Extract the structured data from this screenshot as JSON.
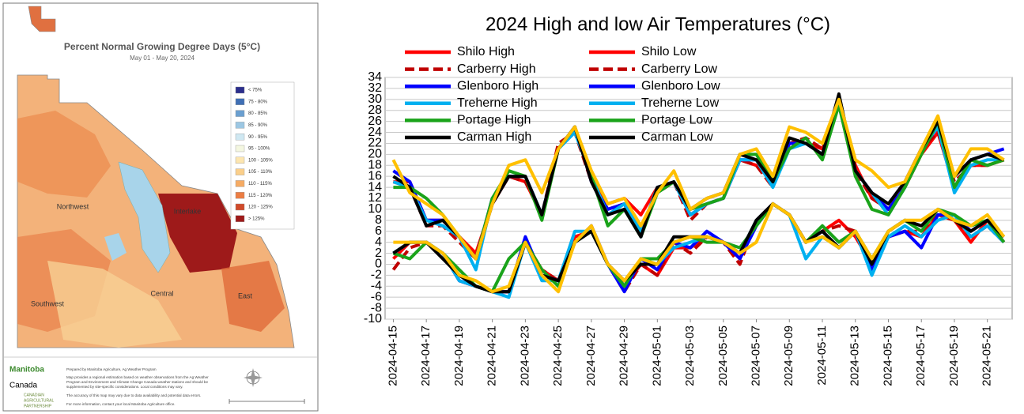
{
  "map_panel": {
    "title": "Percent Normal Growing Degree Days (5°C)",
    "subtitle": "May 01 - May 20, 2024",
    "legend": [
      {
        "label": "< 75%",
        "color": "#2b2e8c"
      },
      {
        "label": "75 - 80%",
        "color": "#3f6fb5"
      },
      {
        "label": "80 - 85%",
        "color": "#6a9fd0"
      },
      {
        "label": "85 - 90%",
        "color": "#9cc7e3"
      },
      {
        "label": "90 - 95%",
        "color": "#cfe8f2"
      },
      {
        "label": "95 - 100%",
        "color": "#f4f7e0"
      },
      {
        "label": "100 - 105%",
        "color": "#fde6b0"
      },
      {
        "label": "105 - 110%",
        "color": "#fbcf8a"
      },
      {
        "label": "110 - 115%",
        "color": "#f6ab63"
      },
      {
        "label": "115 - 120%",
        "color": "#ec7d43"
      },
      {
        "label": "120 - 125%",
        "color": "#d04a2a"
      },
      {
        "label": "> 125%",
        "color": "#9e1a1a"
      }
    ],
    "regions": [
      "Northwest",
      "Interlake",
      "Southwest",
      "Central",
      "East"
    ],
    "logos": [
      "Manitoba",
      "Canada",
      "CANADIAN",
      "AGRICULTURAL",
      "PARTNERSHIP"
    ],
    "notes": [
      "Prepared by Manitoba Agriculture, Ag Weather Program",
      "Map provides a regional estimation based on weather observations from the Ag Weather",
      "Program and Environment and Climate Change Canada weather stations and should be",
      "supplemented by site-specific considerations. Local conditions may vary.",
      "The accuracy of this map may vary due to data availability and potential data errors.",
      "For more information, contact your local Manitoba Agriculture office."
    ]
  },
  "chart_data": {
    "type": "line",
    "title": "2024 High and low Air Temperatures (°C)",
    "categories": [
      "2024-04-15",
      null,
      "2024-04-17",
      null,
      "2024-04-19",
      null,
      "2024-04-21",
      null,
      "2024-04-23",
      null,
      "2024-04-25",
      null,
      "2024-04-27",
      null,
      "2024-04-29",
      null,
      "2024-05-01",
      null,
      "2024-05-03",
      null,
      "2024-05-05",
      null,
      "2024-05-07",
      null,
      "2024-05-09",
      null,
      "2024-05-11",
      null,
      "2024-05-13",
      null,
      "2024-05-15",
      null,
      "2024-05-17",
      null,
      "2024-05-19",
      null,
      "2024-05-21",
      null
    ],
    "ylim": [
      -10,
      34
    ],
    "yticks": [
      -10,
      -8,
      -6,
      -4,
      -2,
      0,
      2,
      4,
      6,
      8,
      10,
      12,
      14,
      16,
      18,
      20,
      22,
      24,
      26,
      28,
      30,
      32,
      34
    ],
    "grid": true,
    "series": [
      {
        "name": "Shilo High",
        "color": "#ff0000",
        "values": [
          15,
          15,
          8,
          8,
          5,
          2,
          11,
          16,
          15,
          9,
          21,
          25,
          16,
          11,
          12,
          9,
          14,
          15,
          9,
          11,
          12,
          19,
          18,
          15,
          22,
          22,
          21,
          29,
          18,
          12,
          10,
          14,
          20,
          24,
          14,
          18,
          18,
          19
        ]
      },
      {
        "name": "Shilo Low",
        "color": "#ff0000",
        "values": [
          1,
          4,
          4,
          2,
          -3,
          -4,
          -5,
          -5,
          4,
          -1,
          -3,
          5,
          6,
          0,
          -4,
          0,
          -2,
          3,
          3,
          5,
          4,
          1,
          8,
          11,
          9,
          4,
          6,
          8,
          5,
          0,
          5,
          6,
          5,
          9,
          8,
          4,
          8,
          4
        ]
      },
      {
        "name": "Carberry High",
        "color": "#c00000",
        "dashed": true,
        "values": [
          15,
          14,
          7,
          7,
          4,
          1,
          11,
          16,
          15,
          9,
          22,
          24,
          15,
          10,
          11,
          6,
          13,
          15,
          8,
          11,
          12,
          19,
          18,
          14,
          22,
          23,
          21,
          29,
          17,
          12,
          10,
          15,
          21,
          24,
          15,
          18,
          18,
          19
        ]
      },
      {
        "name": "Carberry Low",
        "color": "#c00000",
        "dashed": true,
        "values": [
          -1,
          3,
          4,
          2,
          -3,
          -4,
          -5,
          -5,
          4,
          -1,
          -3,
          4,
          6,
          0,
          -5,
          0,
          -2,
          4,
          2,
          5,
          4,
          0,
          8,
          11,
          9,
          4,
          6,
          7,
          6,
          0,
          5,
          6,
          6,
          9,
          8,
          5,
          7,
          4
        ]
      },
      {
        "name": "Glenboro High",
        "color": "#0000ff",
        "values": [
          17,
          15,
          8,
          8,
          5,
          1,
          12,
          16,
          16,
          9,
          21,
          25,
          15,
          10,
          11,
          5,
          14,
          15,
          9,
          11,
          12,
          19,
          19,
          15,
          22,
          22,
          20,
          30,
          17,
          13,
          10,
          14,
          21,
          25,
          14,
          19,
          20,
          21
        ]
      },
      {
        "name": "Glenboro Low",
        "color": "#0000ff",
        "values": [
          2,
          4,
          4,
          2,
          -3,
          -4,
          -5,
          -5,
          5,
          -2,
          -3,
          4,
          7,
          0,
          -5,
          1,
          -1,
          4,
          3,
          6,
          4,
          1,
          7,
          11,
          9,
          4,
          6,
          3,
          6,
          -1,
          5,
          6,
          3,
          9,
          9,
          6,
          8,
          5
        ]
      },
      {
        "name": "Treherne High",
        "color": "#00b0f0",
        "values": [
          15,
          14,
          8,
          7,
          5,
          -1,
          12,
          16,
          16,
          9,
          21,
          24,
          16,
          9,
          11,
          6,
          14,
          15,
          9,
          11,
          12,
          19,
          19,
          14,
          21,
          22,
          20,
          29,
          17,
          13,
          9,
          14,
          21,
          25,
          13,
          18,
          19,
          19
        ]
      },
      {
        "name": "Treherne Low",
        "color": "#00b0f0",
        "values": [
          2,
          4,
          4,
          2,
          -3,
          -4,
          -5,
          -6,
          4,
          -3,
          -3,
          6,
          6,
          0,
          -4,
          1,
          0,
          3,
          4,
          5,
          4,
          2,
          8,
          11,
          9,
          1,
          5,
          3,
          6,
          -2,
          5,
          7,
          5,
          8,
          9,
          5,
          7,
          4
        ]
      },
      {
        "name": "Portage High",
        "color": "#1aa31a",
        "values": [
          14,
          14,
          12,
          9,
          5,
          1,
          12,
          17,
          16,
          8,
          21,
          25,
          16,
          7,
          10,
          5,
          13,
          15,
          10,
          11,
          12,
          20,
          20,
          15,
          21,
          23,
          19,
          29,
          16,
          10,
          9,
          14,
          20,
          26,
          14,
          19,
          18,
          19
        ]
      },
      {
        "name": "Portage Low",
        "color": "#1aa31a",
        "values": [
          2,
          1,
          4,
          2,
          -1,
          -4,
          -5,
          1,
          4,
          -1,
          -4,
          4,
          6,
          0,
          -4,
          1,
          1,
          4,
          5,
          4,
          4,
          3,
          7,
          11,
          9,
          4,
          7,
          4,
          6,
          1,
          6,
          8,
          6,
          10,
          9,
          7,
          8,
          4
        ]
      },
      {
        "name": "Carman High",
        "color": "#000000",
        "values": [
          16,
          14,
          7,
          8,
          5,
          1,
          11,
          16,
          16,
          9,
          21,
          25,
          15,
          9,
          10,
          5,
          14,
          15,
          10,
          12,
          13,
          20,
          19,
          15,
          23,
          22,
          20,
          31,
          17,
          13,
          11,
          15,
          21,
          26,
          16,
          19,
          20,
          19
        ]
      },
      {
        "name": "Carman Low",
        "color": "#000000",
        "values": [
          2,
          4,
          4,
          1,
          -2,
          -4,
          -5,
          -5,
          4,
          -2,
          -3,
          4,
          6,
          0,
          -3,
          0,
          0,
          5,
          5,
          5,
          4,
          2,
          8,
          11,
          9,
          4,
          6,
          3,
          6,
          0,
          6,
          8,
          7,
          10,
          8,
          6,
          8,
          5
        ]
      },
      {
        "color": "#ffc000",
        "values": [
          19,
          13,
          11,
          9,
          5,
          1,
          11,
          18,
          19,
          13,
          21,
          25,
          17,
          11,
          12,
          7,
          13,
          17,
          10,
          12,
          13,
          20,
          21,
          16,
          25,
          24,
          22,
          30,
          19,
          17,
          14,
          15,
          21,
          27,
          16,
          21,
          21,
          19
        ]
      },
      {
        "color": "#ffc000",
        "values": [
          4,
          4,
          4,
          2,
          -2,
          -3,
          -5,
          -4,
          4,
          -2,
          -5,
          4,
          7,
          0,
          -3,
          1,
          0,
          4,
          5,
          5,
          4,
          2,
          4,
          11,
          9,
          4,
          5,
          3,
          6,
          1,
          6,
          8,
          8,
          10,
          8,
          7,
          9,
          5
        ]
      }
    ]
  }
}
